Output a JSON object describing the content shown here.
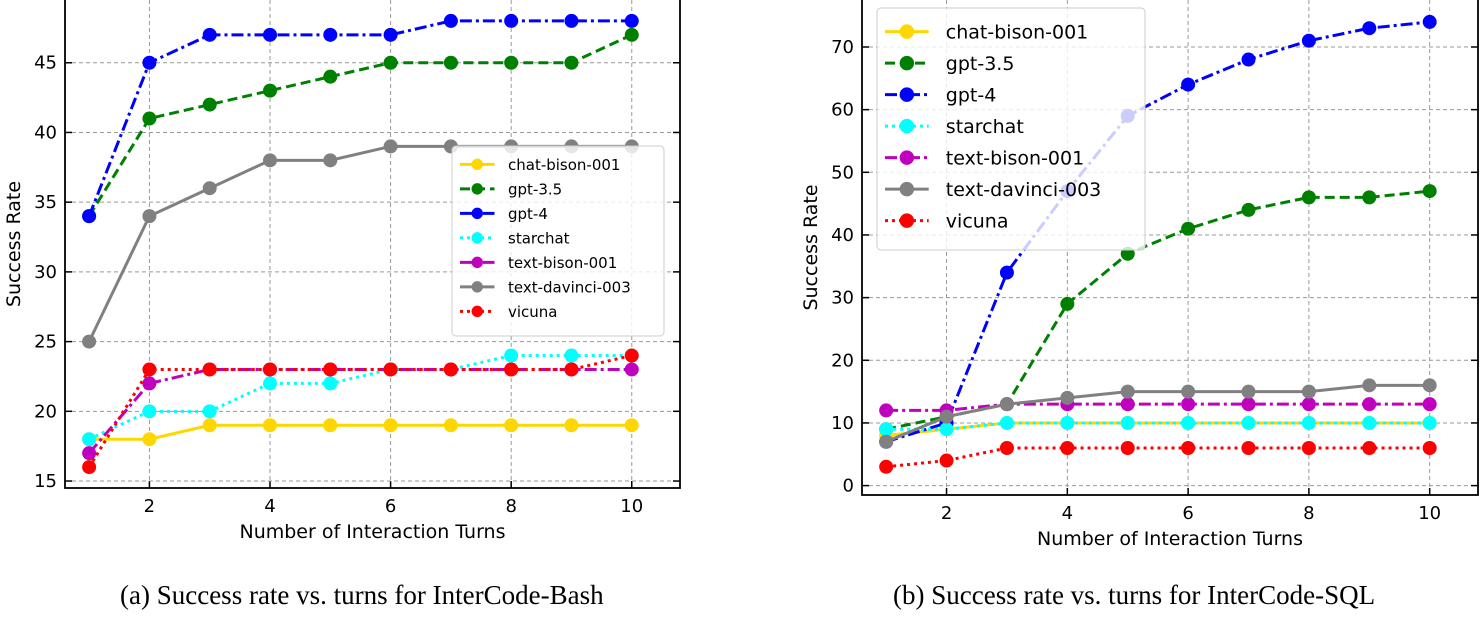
{
  "chart_data": [
    {
      "type": "line",
      "title": "",
      "caption": "(a) Success rate vs. turns for InterCode-Bash",
      "xlabel": "Number of Interaction Turns",
      "ylabel": "Success Rate",
      "x": [
        1,
        2,
        3,
        4,
        5,
        6,
        7,
        8,
        9,
        10
      ],
      "xlim": [
        0.6,
        10.8
      ],
      "ylim": [
        14.5,
        49.5
      ],
      "xticks": [
        2,
        4,
        6,
        8,
        10
      ],
      "yticks": [
        15,
        20,
        25,
        30,
        35,
        40,
        45
      ],
      "grid": true,
      "legend_position": "center-right",
      "series": [
        {
          "name": "chat-bison-001",
          "color": "#FFD700",
          "dash": "solid",
          "values": [
            18,
            18,
            19,
            19,
            19,
            19,
            19,
            19,
            19,
            19
          ]
        },
        {
          "name": "gpt-3.5",
          "color": "#008000",
          "dash": "dashed",
          "values": [
            34,
            41,
            42,
            43,
            44,
            45,
            45,
            45,
            45,
            47
          ]
        },
        {
          "name": "gpt-4",
          "color": "#0000FF",
          "dash": "dashdot",
          "values": [
            34,
            45,
            47,
            47,
            47,
            47,
            48,
            48,
            48,
            48
          ]
        },
        {
          "name": "starchat",
          "color": "#00FFFF",
          "dash": "dotted",
          "values": [
            18,
            20,
            20,
            22,
            22,
            23,
            23,
            24,
            24,
            24
          ]
        },
        {
          "name": "text-bison-001",
          "color": "#BF00BF",
          "dash": "dashdot",
          "values": [
            17,
            22,
            23,
            23,
            23,
            23,
            23,
            23,
            23,
            23
          ]
        },
        {
          "name": "text-davinci-003",
          "color": "#808080",
          "dash": "solid",
          "values": [
            25,
            34,
            36,
            38,
            38,
            39,
            39,
            39,
            39,
            39
          ]
        },
        {
          "name": "vicuna",
          "color": "#FF0000",
          "dash": "dotted",
          "values": [
            16,
            23,
            23,
            23,
            23,
            23,
            23,
            23,
            23,
            24
          ]
        }
      ]
    },
    {
      "type": "line",
      "title": "",
      "caption": "(b) Success rate vs. turns for InterCode-SQL",
      "xlabel": "Number of Interaction Turns",
      "ylabel": "Success Rate",
      "x": [
        1,
        2,
        3,
        4,
        5,
        6,
        7,
        8,
        9,
        10
      ],
      "xlim": [
        0.6,
        10.8
      ],
      "ylim": [
        -1.5,
        77.5
      ],
      "xticks": [
        2,
        4,
        6,
        8,
        10
      ],
      "yticks": [
        0,
        10,
        20,
        30,
        40,
        50,
        60,
        70
      ],
      "grid": true,
      "legend_position": "upper-left",
      "series": [
        {
          "name": "chat-bison-001",
          "color": "#FFD700",
          "dash": "solid",
          "values": [
            8,
            9,
            10,
            10,
            10,
            10,
            10,
            10,
            10,
            10
          ]
        },
        {
          "name": "gpt-3.5",
          "color": "#008000",
          "dash": "dashed",
          "values": [
            9,
            11,
            13,
            29,
            37,
            41,
            44,
            46,
            46,
            47
          ]
        },
        {
          "name": "gpt-4",
          "color": "#0000FF",
          "dash": "dashdot",
          "values": [
            7,
            10,
            34,
            47,
            59,
            64,
            68,
            71,
            73,
            74
          ]
        },
        {
          "name": "starchat",
          "color": "#00FFFF",
          "dash": "dotted",
          "values": [
            9,
            9,
            10,
            10,
            10,
            10,
            10,
            10,
            10,
            10
          ]
        },
        {
          "name": "text-bison-001",
          "color": "#BF00BF",
          "dash": "dashdot",
          "values": [
            12,
            12,
            13,
            13,
            13,
            13,
            13,
            13,
            13,
            13
          ]
        },
        {
          "name": "text-davinci-003",
          "color": "#808080",
          "dash": "solid",
          "values": [
            7,
            11,
            13,
            14,
            15,
            15,
            15,
            15,
            16,
            16
          ]
        },
        {
          "name": "vicuna",
          "color": "#FF0000",
          "dash": "dotted",
          "values": [
            3,
            4,
            6,
            6,
            6,
            6,
            6,
            6,
            6,
            6
          ]
        }
      ]
    }
  ]
}
